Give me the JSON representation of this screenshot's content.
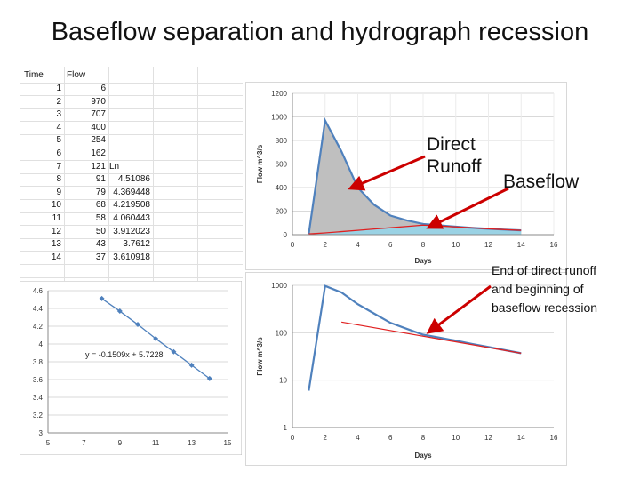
{
  "title": "Baseflow separation and hydrograph recession",
  "table": {
    "headers": {
      "time": "Time",
      "flow": "Flow",
      "ln": "Ln"
    },
    "rows": [
      {
        "time": "1",
        "flow": "6",
        "ln": ""
      },
      {
        "time": "2",
        "flow": "970",
        "ln": ""
      },
      {
        "time": "3",
        "flow": "707",
        "ln": ""
      },
      {
        "time": "4",
        "flow": "400",
        "ln": ""
      },
      {
        "time": "5",
        "flow": "254",
        "ln": ""
      },
      {
        "time": "6",
        "flow": "162",
        "ln": ""
      },
      {
        "time": "7",
        "flow": "121",
        "ln": ""
      },
      {
        "time": "8",
        "flow": "91",
        "ln": "4.51086"
      },
      {
        "time": "9",
        "flow": "79",
        "ln": "4.369448"
      },
      {
        "time": "10",
        "flow": "68",
        "ln": "4.219508"
      },
      {
        "time": "11",
        "flow": "58",
        "ln": "4.060443"
      },
      {
        "time": "12",
        "flow": "50",
        "ln": "3.912023"
      },
      {
        "time": "13",
        "flow": "43",
        "ln": "3.7612"
      },
      {
        "time": "14",
        "flow": "37",
        "ln": "3.610918"
      }
    ]
  },
  "annotations": {
    "direct_runoff_line1": "Direct",
    "direct_runoff_line2": "Runoff",
    "baseflow": "Baseflow",
    "recession_line1": "End of direct runoff",
    "recession_line2": "and beginning of",
    "recession_line3": "baseflow recession"
  },
  "colors": {
    "series": "#4f81bd",
    "runoff_fill": "#bfbfbf",
    "baseflow_fill": "#9ad2e4",
    "red": "#e02020",
    "arrow": "#cc0000"
  },
  "chart_data": [
    {
      "type": "area",
      "id": "hydrograph",
      "x": [
        1,
        2,
        3,
        4,
        5,
        6,
        7,
        8,
        9,
        10,
        11,
        12,
        13,
        14
      ],
      "series": [
        {
          "name": "Flow",
          "values": [
            6,
            970,
            707,
            400,
            254,
            162,
            121,
            91,
            79,
            68,
            58,
            50,
            43,
            37
          ]
        },
        {
          "name": "Baseflow",
          "values": [
            6,
            15,
            26,
            37,
            48,
            59,
            70,
            81,
            74,
            66,
            58,
            50,
            43,
            37
          ]
        }
      ],
      "xlabel": "Days",
      "ylabel": "Flow m^3/s",
      "xlim": [
        0,
        16
      ],
      "ylim": [
        0,
        1200
      ],
      "xticks": [
        "0",
        "2",
        "4",
        "6",
        "8",
        "10",
        "12",
        "14",
        "16"
      ],
      "yticks": [
        "0",
        "200",
        "400",
        "600",
        "800",
        "1000",
        "1200"
      ]
    },
    {
      "type": "line",
      "id": "log_hydrograph",
      "yscale": "log",
      "x": [
        1,
        2,
        3,
        4,
        5,
        6,
        7,
        8,
        9,
        10,
        11,
        12,
        13,
        14
      ],
      "series": [
        {
          "name": "Flow",
          "values": [
            6,
            970,
            707,
            400,
            254,
            162,
            121,
            91,
            79,
            68,
            58,
            50,
            43,
            37
          ]
        },
        {
          "name": "Recession",
          "x": [
            3,
            14
          ],
          "values": [
            168,
            37
          ]
        }
      ],
      "xlabel": "Days",
      "ylabel": "Flow m^3/s",
      "xlim": [
        0,
        16
      ],
      "ylim": [
        1,
        1000
      ],
      "xticks": [
        "0",
        "2",
        "4",
        "6",
        "8",
        "10",
        "12",
        "14",
        "16"
      ],
      "yticks": [
        "1",
        "10",
        "100",
        "1000"
      ]
    },
    {
      "type": "scatter",
      "id": "ln_regression",
      "x": [
        8,
        9,
        10,
        11,
        12,
        13,
        14
      ],
      "values": [
        4.51086,
        4.369448,
        4.219508,
        4.060443,
        3.912023,
        3.7612,
        3.610918
      ],
      "trendline": "y = -0.1509x + 5.7228",
      "xlim": [
        5,
        15
      ],
      "ylim": [
        3,
        4.6
      ],
      "xticks": [
        "5",
        "7",
        "9",
        "11",
        "13",
        "15"
      ],
      "yticks": [
        "3",
        "3.2",
        "3.4",
        "3.6",
        "3.8",
        "4",
        "4.2",
        "4.4",
        "4.6"
      ]
    }
  ]
}
